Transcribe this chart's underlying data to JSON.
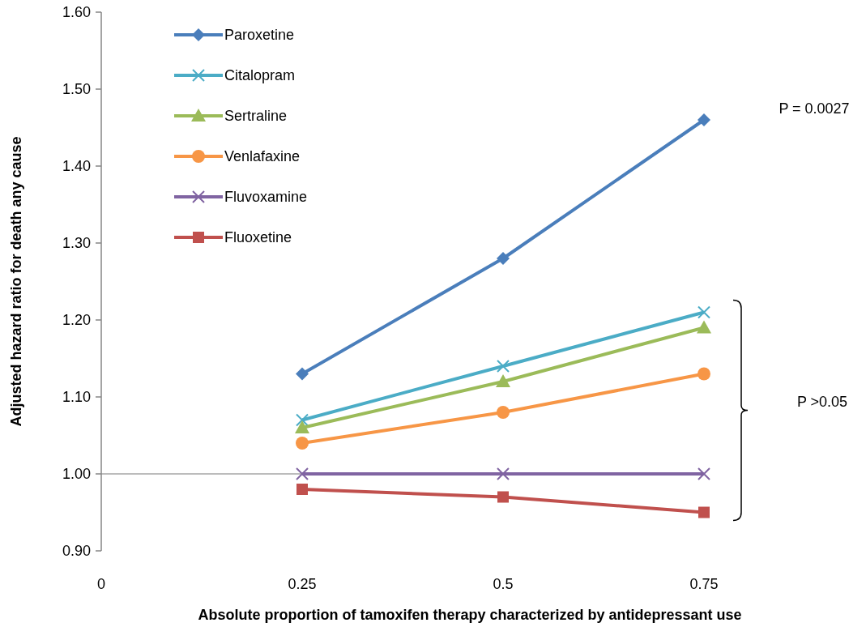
{
  "chart_data": {
    "type": "line",
    "xlabel": "Absolute proportion of tamoxifen therapy characterized by antidepressant use",
    "ylabel": "Adjusted hazard ratio for death any cause",
    "x": [
      0.25,
      0.5,
      0.75
    ],
    "series": [
      {
        "name": "Paroxetine",
        "color": "#4a7ebb",
        "marker": "diamond",
        "values": [
          1.13,
          1.28,
          1.46
        ]
      },
      {
        "name": "Citalopram",
        "color": "#4bacc6",
        "marker": "cross",
        "values": [
          1.07,
          1.14,
          1.21
        ]
      },
      {
        "name": "Sertraline",
        "color": "#9bbb59",
        "marker": "triangle",
        "values": [
          1.06,
          1.12,
          1.19
        ]
      },
      {
        "name": "Venlafaxine",
        "color": "#f79646",
        "marker": "circle",
        "values": [
          1.04,
          1.08,
          1.13
        ]
      },
      {
        "name": "Fluvoxamine",
        "color": "#8064a2",
        "marker": "cross",
        "values": [
          1.0,
          1.0,
          1.0
        ]
      },
      {
        "name": "Fluoxetine",
        "color": "#c0504d",
        "marker": "square",
        "values": [
          0.98,
          0.97,
          0.95
        ]
      }
    ],
    "xlim": [
      0,
      0.75
    ],
    "xticks": [
      0,
      0.25,
      0.5,
      0.75
    ],
    "ylim": [
      0.9,
      1.6
    ],
    "yticks": [
      {
        "value": 0.9,
        "label": "0.90"
      },
      {
        "value": 1.0,
        "label": "1.00"
      },
      {
        "value": 1.1,
        "label": "1.10"
      },
      {
        "value": 1.2,
        "label": "1.20"
      },
      {
        "value": 1.3,
        "label": "1.30"
      },
      {
        "value": 1.4,
        "label": "1.40"
      },
      {
        "value": 1.5,
        "label": "1.50"
      },
      {
        "value": 1.6,
        "label": "1.60"
      }
    ],
    "ref_lines": [
      {
        "axis": "y",
        "value": 1.0,
        "color": "#a6a6a6"
      }
    ],
    "annotations": [
      "P = 0.0027",
      "P >0.05"
    ],
    "legend": "top left",
    "grid": false,
    "line_style": "solid"
  }
}
